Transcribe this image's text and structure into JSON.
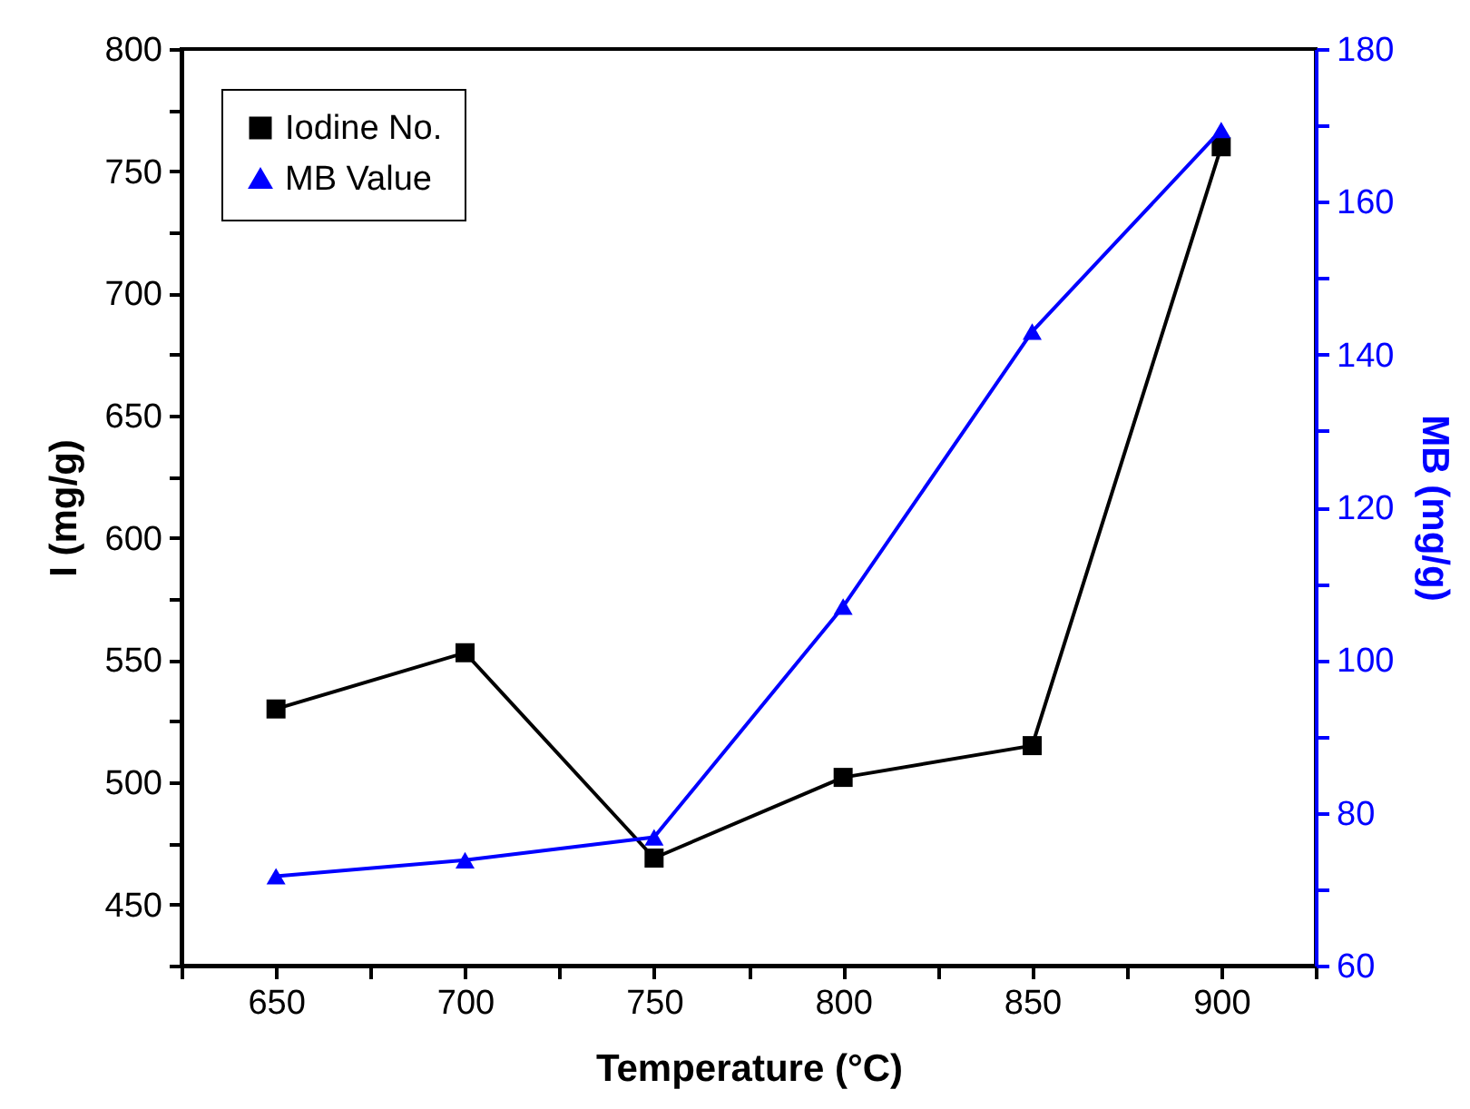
{
  "chart_data": {
    "type": "line",
    "xlabel": "Temperature (°C)",
    "ylabel": "I (mg/g)",
    "y2label": "MB (mg/g)",
    "x": [
      650,
      700,
      750,
      800,
      850,
      900
    ],
    "series": [
      {
        "name": "Iodine No.",
        "color": "#000000",
        "marker": "square",
        "values": [
          530,
          553,
          469,
          502,
          515,
          760
        ]
      },
      {
        "name": "MB Value",
        "color": "#0000ff",
        "marker": "triangle",
        "axis": "y2",
        "values": [
          71.7,
          73.8,
          76.8,
          107,
          143,
          169.4
        ]
      }
    ],
    "xlim": [
      625,
      925
    ],
    "xticks": [
      {
        "value": 625,
        "label": null
      },
      650,
      {
        "value": 675,
        "label": null
      },
      700,
      {
        "value": 725,
        "label": null
      },
      750,
      {
        "value": 775,
        "label": null
      },
      800,
      {
        "value": 825,
        "label": null
      },
      850,
      {
        "value": 875,
        "label": null
      },
      900,
      {
        "value": 925,
        "label": null
      }
    ],
    "ylim": [
      425,
      800
    ],
    "yticks": [
      {
        "value": 425,
        "label": null
      },
      450,
      {
        "value": 475,
        "label": null
      },
      500,
      {
        "value": 525,
        "label": null
      },
      550,
      {
        "value": 575,
        "label": null
      },
      600,
      {
        "value": 625,
        "label": null
      },
      650,
      {
        "value": 675,
        "label": null
      },
      700,
      {
        "value": 725,
        "label": null
      },
      750,
      {
        "value": 775,
        "label": null
      },
      800
    ],
    "y2lim": [
      60,
      180
    ],
    "y2ticks": [
      60,
      {
        "value": 70,
        "label": null
      },
      80,
      {
        "value": 90,
        "label": null
      },
      100,
      {
        "value": 110,
        "label": null
      },
      120,
      {
        "value": 130,
        "label": null
      },
      140,
      {
        "value": 150,
        "label": null
      },
      160,
      {
        "value": 170,
        "label": null
      },
      180
    ],
    "legend": "top left",
    "grid": false,
    "line_style": "solid"
  }
}
